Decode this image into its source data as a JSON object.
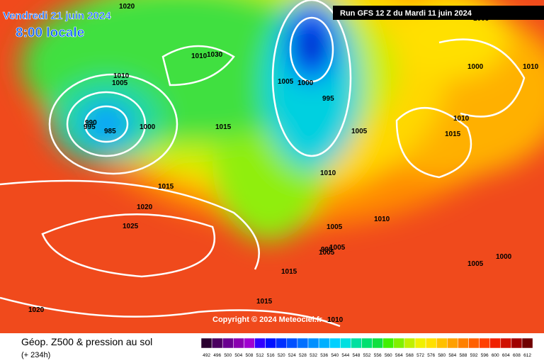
{
  "header": {
    "date": "Vendredi 21 juin 2024",
    "time": "8:00 locale",
    "run": "Run GFS 12 Z du Mardi 11 juin 2024"
  },
  "isobar_labels": [
    "1020",
    "1010",
    "1005",
    "995",
    "990",
    "985",
    "1000",
    "1030",
    "1010",
    "1005",
    "1000",
    "995",
    "1015",
    "1005",
    "1010",
    "1015",
    "1020",
    "1025",
    "1020",
    "1015",
    "1010",
    "1005",
    "1005",
    "1015",
    "1010",
    "1000",
    "1005",
    "1010",
    "1015",
    "1000",
    "1005",
    "995",
    "1005",
    "1010"
  ],
  "copyright": "Copyright © 2024 Meteociel.fr",
  "footer": {
    "title": "Géop. Z500 & pression au sol",
    "subtitle": "(+ 234h)"
  },
  "scale": {
    "labels": [
      "492",
      "496",
      "500",
      "504",
      "508",
      "512",
      "516",
      "520",
      "524",
      "528",
      "532",
      "536",
      "540",
      "544",
      "548",
      "552",
      "556",
      "560",
      "564",
      "568",
      "572",
      "576",
      "580",
      "584",
      "588",
      "592",
      "596",
      "600",
      "604",
      "608",
      "612"
    ],
    "colors": [
      "#2a0030",
      "#4b0060",
      "#6a0090",
      "#8a00b0",
      "#a000d0",
      "#3000ff",
      "#0010ff",
      "#0030ff",
      "#0050ff",
      "#0070ff",
      "#0090ff",
      "#00b0ff",
      "#00d0ff",
      "#00e0e0",
      "#00e0a0",
      "#00e070",
      "#10e040",
      "#40f000",
      "#80f000",
      "#c0f000",
      "#f0f000",
      "#ffe000",
      "#ffc000",
      "#ffa000",
      "#ff8000",
      "#ff6000",
      "#ff4000",
      "#f02000",
      "#d01000",
      "#a00000",
      "#700000"
    ]
  }
}
